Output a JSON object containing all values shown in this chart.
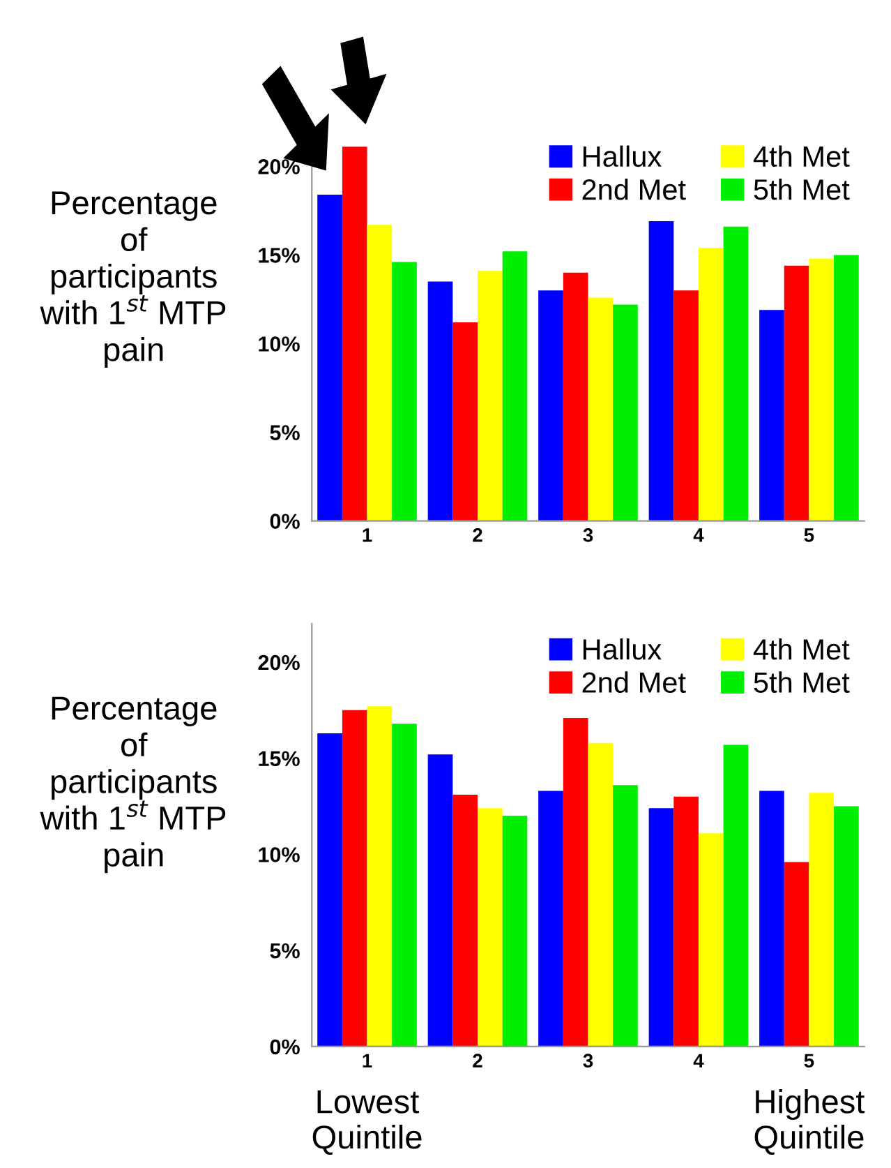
{
  "chart_data": [
    {
      "type": "bar",
      "ylabel": "Percentage\nof\nparticipants\nwith 1$^{st}$ MTP\npain",
      "categories": [
        "1",
        "2",
        "3",
        "4",
        "5"
      ],
      "ylim": [
        0,
        22
      ],
      "yticks": [
        {
          "value": 0,
          "label": "0%"
        },
        {
          "value": 5,
          "label": "5%"
        },
        {
          "value": 10,
          "label": "10%"
        },
        {
          "value": 15,
          "label": "15%"
        },
        {
          "value": 20,
          "label": "20%"
        }
      ],
      "grid": false,
      "legend": "top right",
      "series": [
        {
          "name": "Hallux",
          "color": "#0000ff",
          "values": [
            18.4,
            13.5,
            13.0,
            16.9,
            11.9
          ]
        },
        {
          "name": "2nd Met",
          "color": "#ff0000",
          "values": [
            21.1,
            11.2,
            14.0,
            13.0,
            14.4
          ]
        },
        {
          "name": "4th Met",
          "color": "#ffff00",
          "values": [
            16.7,
            14.1,
            12.6,
            15.4,
            14.8
          ]
        },
        {
          "name": "5th Met",
          "color": "#00ee00",
          "values": [
            14.6,
            15.2,
            12.2,
            16.6,
            15.0
          ]
        }
      ]
    },
    {
      "type": "bar",
      "ylabel": "Percentage\nof\nparticipants\nwith 1$^{st}$ MTP\npain",
      "categories": [
        "1",
        "2",
        "3",
        "4",
        "5"
      ],
      "ylim": [
        0,
        22
      ],
      "yticks": [
        {
          "value": 0,
          "label": "0%"
        },
        {
          "value": 5,
          "label": "5%"
        },
        {
          "value": 10,
          "label": "10%"
        },
        {
          "value": 15,
          "label": "15%"
        },
        {
          "value": 20,
          "label": "20%"
        }
      ],
      "grid": false,
      "legend": "top right",
      "annotations": [
        "Lowest\nQuintile",
        "Highest\nQuintile"
      ],
      "series": [
        {
          "name": "Hallux",
          "color": "#0000ff",
          "values": [
            16.3,
            15.2,
            13.3,
            12.4,
            13.3
          ]
        },
        {
          "name": "2nd Met",
          "color": "#ff0000",
          "values": [
            17.5,
            13.1,
            17.1,
            13.0,
            9.6
          ]
        },
        {
          "name": "4th Met",
          "color": "#ffff00",
          "values": [
            17.7,
            12.4,
            15.8,
            11.1,
            13.2
          ]
        },
        {
          "name": "5th Met",
          "color": "#00ee00",
          "values": [
            16.8,
            12.0,
            13.6,
            15.7,
            12.5
          ]
        }
      ]
    }
  ]
}
